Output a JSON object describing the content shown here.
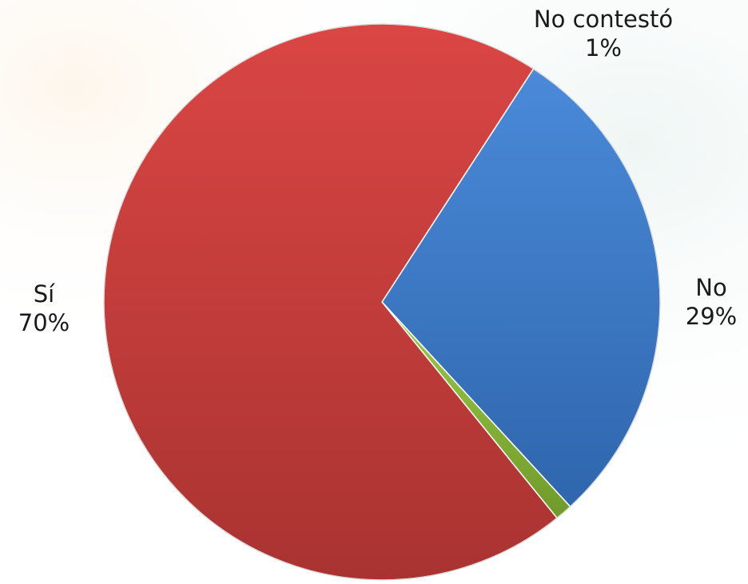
{
  "chart_data": {
    "type": "pie",
    "title": "",
    "slices": [
      {
        "label": "No",
        "value": 29,
        "value_label": "29%",
        "color": "#3f7fcf"
      },
      {
        "label": "No contestó",
        "value": 1,
        "value_label": "1%",
        "color": "#86b33a"
      },
      {
        "label": "Sí",
        "value": 70,
        "value_label": "70%",
        "color": "#cc3f3d"
      }
    ],
    "legend": "none",
    "data_labels": "outside, category name and percentage"
  }
}
